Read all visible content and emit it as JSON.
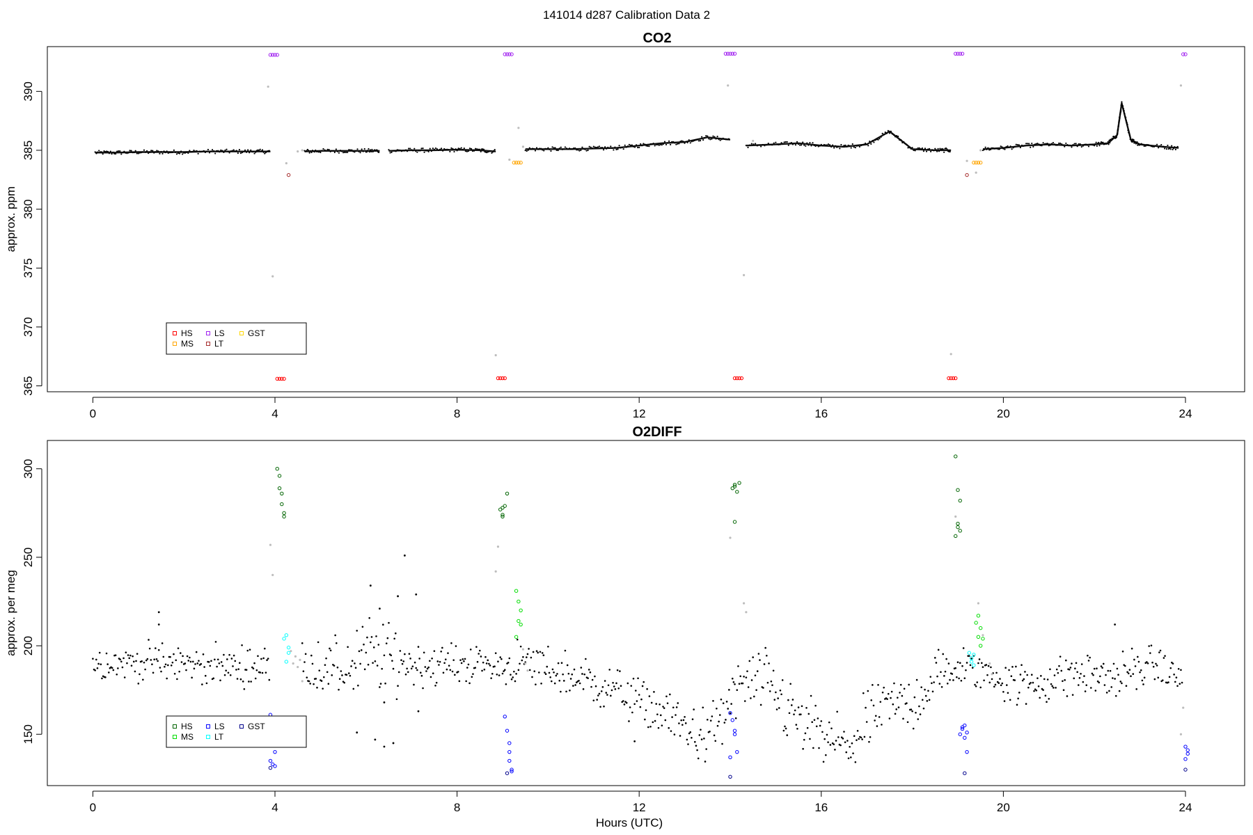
{
  "figure": {
    "title": "141014   d287   Calibration Data 2",
    "xlabel": "Hours (UTC)"
  },
  "chart_data": [
    {
      "type": "scatter",
      "title": "CO2",
      "xlabel": "",
      "ylabel": "approx. ppm",
      "xlim": [
        -1,
        25.3
      ],
      "ylim": [
        364.5,
        393.8
      ],
      "xticks": [
        0,
        4,
        8,
        12,
        16,
        20,
        24
      ],
      "yticks": [
        365,
        370,
        375,
        380,
        385,
        390
      ],
      "grid": false,
      "legend": {
        "placement": "bottom-left",
        "entries": [
          {
            "name": "HS",
            "color": "#ff0000"
          },
          {
            "name": "LS",
            "color": "#a020f0"
          },
          {
            "name": "GST",
            "color": "#ffd700"
          },
          {
            "name": "MS",
            "color": "#ffa500"
          },
          {
            "name": "LT",
            "color": "#a52a2a"
          }
        ]
      },
      "baseline_segments": [
        {
          "x": [
            0.05,
            0.5,
            1.0,
            1.5,
            2.0,
            2.5,
            3.0,
            3.5,
            3.9
          ],
          "y": [
            384.8,
            384.8,
            384.85,
            384.85,
            384.85,
            384.9,
            384.9,
            384.9,
            384.9
          ]
        },
        {
          "x": [
            4.65,
            5.0,
            5.5,
            6.0,
            6.3
          ],
          "y": [
            384.9,
            384.95,
            384.95,
            384.95,
            384.95
          ]
        },
        {
          "x": [
            6.5,
            7.0,
            7.5,
            8.0,
            8.5,
            8.85
          ],
          "y": [
            384.95,
            385.0,
            385.0,
            385.05,
            385.0,
            384.9
          ]
        },
        {
          "x": [
            9.5,
            10.0,
            10.5,
            11.0,
            11.5,
            12.0,
            12.5,
            13.0,
            13.5,
            14.0
          ],
          "y": [
            385.1,
            385.1,
            385.1,
            385.15,
            385.2,
            385.4,
            385.6,
            385.7,
            386.1,
            385.9
          ]
        },
        {
          "x": [
            14.35,
            15.0,
            15.5,
            16.0,
            16.5,
            17.0,
            17.5,
            18.0,
            18.5,
            18.85
          ],
          "y": [
            385.4,
            385.5,
            385.6,
            385.4,
            385.3,
            385.5,
            386.6,
            385.1,
            385.0,
            385.0
          ]
        },
        {
          "x": [
            19.55,
            20.0,
            20.5,
            21.0,
            21.5,
            22.0,
            22.3,
            22.5,
            22.6,
            22.8,
            23.0,
            23.5,
            23.85
          ],
          "y": [
            385.1,
            385.2,
            385.4,
            385.5,
            385.4,
            385.5,
            385.6,
            386.3,
            389.0,
            385.9,
            385.5,
            385.3,
            385.2
          ]
        }
      ],
      "gray_points": [
        {
          "x": 3.85,
          "y": 390.4
        },
        {
          "x": 3.95,
          "y": 374.3
        },
        {
          "x": 4.25,
          "y": 383.9
        },
        {
          "x": 4.5,
          "y": 384.9
        },
        {
          "x": 4.6,
          "y": 385.0
        },
        {
          "x": 8.85,
          "y": 367.6
        },
        {
          "x": 9.15,
          "y": 384.2
        },
        {
          "x": 9.35,
          "y": 386.9
        },
        {
          "x": 9.45,
          "y": 385.3
        },
        {
          "x": 13.95,
          "y": 390.5
        },
        {
          "x": 14.3,
          "y": 374.4
        },
        {
          "x": 14.5,
          "y": 385.8
        },
        {
          "x": 18.85,
          "y": 367.7
        },
        {
          "x": 19.2,
          "y": 384.1
        },
        {
          "x": 19.4,
          "y": 383.1
        },
        {
          "x": 19.5,
          "y": 385.0
        },
        {
          "x": 23.9,
          "y": 390.5
        }
      ],
      "series": [
        {
          "name": "LS",
          "color": "#a020f0",
          "x": [
            3.9,
            3.95,
            4.0,
            4.05,
            9.05,
            9.1,
            9.15,
            9.2,
            13.9,
            13.95,
            14.0,
            14.05,
            14.1,
            18.95,
            19.0,
            19.05,
            19.1,
            23.95,
            24.0
          ],
          "y": [
            393.1,
            393.1,
            393.1,
            393.1,
            393.15,
            393.15,
            393.15,
            393.15,
            393.2,
            393.2,
            393.2,
            393.2,
            393.2,
            393.2,
            393.2,
            393.2,
            393.2,
            393.15,
            393.15
          ]
        },
        {
          "name": "HS",
          "color": "#ff0000",
          "x": [
            4.05,
            4.1,
            4.15,
            4.2,
            8.9,
            8.95,
            9.0,
            9.05,
            14.1,
            14.15,
            14.2,
            14.25,
            18.8,
            18.85,
            18.9,
            18.95
          ],
          "y": [
            365.6,
            365.6,
            365.6,
            365.6,
            365.65,
            365.65,
            365.65,
            365.65,
            365.65,
            365.65,
            365.65,
            365.65,
            365.65,
            365.65,
            365.65,
            365.65
          ]
        },
        {
          "name": "MS",
          "color": "#ffa500",
          "x": [
            9.25,
            9.3,
            9.35,
            9.4,
            19.35,
            19.4,
            19.45,
            19.5
          ],
          "y": [
            383.95,
            383.95,
            383.95,
            383.95,
            383.95,
            383.95,
            383.95,
            383.95
          ]
        },
        {
          "name": "LT",
          "color": "#a52a2a",
          "x": [
            4.3,
            19.2
          ],
          "y": [
            382.9,
            382.9
          ]
        }
      ]
    },
    {
      "type": "scatter",
      "title": "O2DIFF",
      "xlabel": "Hours (UTC)",
      "ylabel": "approx. per meg",
      "xlim": [
        -1,
        25.3
      ],
      "ylim": [
        121,
        316
      ],
      "xticks": [
        0,
        4,
        8,
        12,
        16,
        20,
        24
      ],
      "yticks": [
        150,
        200,
        250,
        300
      ],
      "grid": false,
      "legend": {
        "placement": "bottom-left",
        "entries": [
          {
            "name": "HS",
            "color": "#006400"
          },
          {
            "name": "LS",
            "color": "#0000ff"
          },
          {
            "name": "GST",
            "color": "#00008b"
          },
          {
            "name": "MS",
            "color": "#00dd00"
          },
          {
            "name": "LT",
            "color": "#00ffff"
          }
        ]
      },
      "trend": {
        "x": [
          0,
          1,
          2,
          3,
          3.9,
          4.6,
          5.5,
          6.0,
          6.5,
          7.5,
          8.5,
          8.9,
          9.5,
          10.5,
          11.5,
          12.5,
          13.5,
          14.3,
          14.8,
          15.5,
          16.0,
          16.6,
          17.3,
          18.0,
          18.7,
          19.0,
          19.6,
          20.5,
          21.5,
          22.5,
          23.3,
          23.95
        ],
        "y": [
          190,
          191,
          190,
          188,
          189,
          189,
          186,
          194,
          192,
          189,
          190,
          188,
          190,
          183,
          175,
          162,
          147,
          180,
          178,
          157,
          148,
          142,
          165,
          168,
          185,
          188,
          185,
          177,
          184,
          182,
          190,
          180
        ],
        "spread": [
          8,
          8,
          8,
          8,
          8,
          10,
          13,
          18,
          16,
          8,
          8,
          8,
          10,
          10,
          10,
          10,
          12,
          14,
          14,
          14,
          16,
          14,
          12,
          12,
          12,
          10,
          8,
          10,
          10,
          10,
          8,
          8
        ]
      },
      "outliers": [
        {
          "x": 1.45,
          "y": 219
        },
        {
          "x": 1.45,
          "y": 212
        },
        {
          "x": 5.8,
          "y": 151
        },
        {
          "x": 6.1,
          "y": 234
        },
        {
          "x": 6.3,
          "y": 221
        },
        {
          "x": 6.2,
          "y": 147
        },
        {
          "x": 6.4,
          "y": 143
        },
        {
          "x": 6.6,
          "y": 145
        },
        {
          "x": 6.7,
          "y": 228
        },
        {
          "x": 6.85,
          "y": 251
        },
        {
          "x": 7.1,
          "y": 229
        },
        {
          "x": 7.15,
          "y": 163
        },
        {
          "x": 6.4,
          "y": 168
        },
        {
          "x": 11.9,
          "y": 146
        },
        {
          "x": 22.45,
          "y": 212
        }
      ],
      "gray_points": [
        {
          "x": 3.9,
          "y": 257
        },
        {
          "x": 3.95,
          "y": 240
        },
        {
          "x": 4.35,
          "y": 197
        },
        {
          "x": 4.4,
          "y": 190
        },
        {
          "x": 4.45,
          "y": 194
        },
        {
          "x": 4.5,
          "y": 188
        },
        {
          "x": 4.55,
          "y": 192
        },
        {
          "x": 4.6,
          "y": 180
        },
        {
          "x": 8.9,
          "y": 256
        },
        {
          "x": 8.85,
          "y": 242
        },
        {
          "x": 9.45,
          "y": 198
        },
        {
          "x": 9.5,
          "y": 190
        },
        {
          "x": 9.55,
          "y": 186
        },
        {
          "x": 14.0,
          "y": 261
        },
        {
          "x": 14.3,
          "y": 224
        },
        {
          "x": 14.35,
          "y": 219
        },
        {
          "x": 18.95,
          "y": 273
        },
        {
          "x": 19.45,
          "y": 224
        },
        {
          "x": 19.55,
          "y": 206
        },
        {
          "x": 19.7,
          "y": 190
        },
        {
          "x": 19.75,
          "y": 184
        },
        {
          "x": 23.95,
          "y": 165
        },
        {
          "x": 23.9,
          "y": 150
        }
      ],
      "series": [
        {
          "name": "HS",
          "color": "#006400",
          "x": [
            4.05,
            4.1,
            4.1,
            4.15,
            4.15,
            4.2,
            4.2,
            8.95,
            9.0,
            9.05,
            9.0,
            9.1,
            9.0,
            14.05,
            14.1,
            14.1,
            14.15,
            14.2,
            14.1,
            18.95,
            19.0,
            19.05,
            19.0,
            18.95,
            19.05,
            19.0
          ],
          "y": [
            300,
            296,
            289,
            286,
            280,
            275,
            273,
            277,
            278,
            279,
            274,
            286,
            273,
            289,
            290,
            291,
            287,
            292,
            270,
            307,
            288,
            282,
            269,
            262,
            265,
            267
          ]
        },
        {
          "name": "MS",
          "color": "#00dd00",
          "x": [
            9.3,
            9.35,
            9.4,
            9.35,
            9.4,
            9.3,
            19.4,
            19.45,
            19.5,
            19.45,
            19.5,
            19.55
          ],
          "y": [
            231,
            225,
            220,
            214,
            212,
            205,
            213,
            217,
            210,
            205,
            200,
            204
          ]
        },
        {
          "name": "LT",
          "color": "#00ffff",
          "x": [
            4.2,
            4.25,
            4.3,
            4.3,
            4.25,
            19.25,
            19.3,
            19.35,
            19.3,
            19.35
          ],
          "y": [
            204,
            206,
            199,
            196,
            191,
            196,
            193,
            189,
            191,
            195
          ]
        },
        {
          "name": "LS",
          "color": "#0000ff",
          "x": [
            3.9,
            3.95,
            4.0,
            4.0,
            3.95,
            3.9,
            9.05,
            9.1,
            9.15,
            9.15,
            9.2,
            9.15,
            9.2,
            14.0,
            14.05,
            14.1,
            14.1,
            14.15,
            14.0,
            19.05,
            19.1,
            19.15,
            19.2,
            19.1,
            19.15,
            19.2,
            24.0,
            24.05,
            24.0,
            24.05
          ],
          "y": [
            161,
            145,
            140,
            132,
            133,
            135,
            160,
            152,
            145,
            140,
            130,
            135,
            129,
            162,
            158,
            152,
            150,
            140,
            137,
            150,
            153,
            155,
            151,
            154,
            148,
            140,
            143,
            139,
            136,
            141
          ]
        },
        {
          "name": "GST",
          "color": "#00008b",
          "x": [
            3.9,
            9.1,
            14.0,
            19.15,
            24.0
          ],
          "y": [
            131,
            128,
            126,
            128,
            130
          ]
        }
      ]
    }
  ]
}
